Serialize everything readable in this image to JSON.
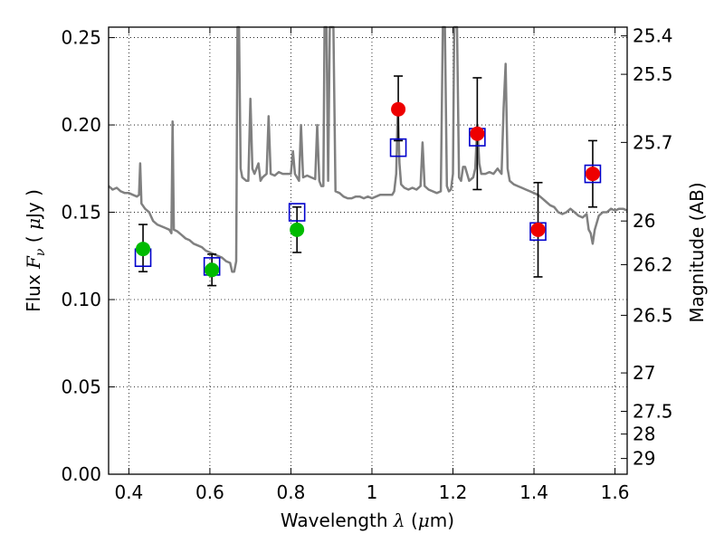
{
  "chart_data": {
    "type": "scatter",
    "xlabel": "Wavelength  λ (μm)",
    "ylabel": "Flux  F_ν  ( μJy )",
    "ylabel_right": "Magnitude (AB)",
    "xlim": [
      0.35,
      1.63
    ],
    "ylim": [
      0.0,
      0.256
    ],
    "grid": true,
    "x_ticks": [
      0.4,
      0.6,
      0.8,
      1.0,
      1.2,
      1.4,
      1.6
    ],
    "x_tick_labels": [
      "0.4",
      "0.6",
      "0.8",
      "1",
      "1.2",
      "1.4",
      "1.6"
    ],
    "y_ticks": [
      0.0,
      0.05,
      0.1,
      0.15,
      0.2,
      0.25
    ],
    "y_tick_labels": [
      "0.00",
      "0.05",
      "0.10",
      "0.15",
      "0.20",
      "0.25"
    ],
    "right_axis_ticks": [
      {
        "label": "25.4",
        "flux": 0.251
      },
      {
        "label": "25.5",
        "flux": 0.229
      },
      {
        "label": "25.7",
        "flux": 0.19
      },
      {
        "label": "26",
        "flux": 0.145
      },
      {
        "label": "26.2",
        "flux": 0.12
      },
      {
        "label": "26.5",
        "flux": 0.091
      },
      {
        "label": "27",
        "flux": 0.058
      },
      {
        "label": "27.5",
        "flux": 0.036
      },
      {
        "label": "28",
        "flux": 0.023
      },
      {
        "label": "29",
        "flux": 0.009
      }
    ],
    "series": [
      {
        "role": "model-spectrum",
        "color": "#808080",
        "points": [
          [
            0.35,
            0.165
          ],
          [
            0.36,
            0.163
          ],
          [
            0.37,
            0.164
          ],
          [
            0.38,
            0.162
          ],
          [
            0.39,
            0.161
          ],
          [
            0.4,
            0.161
          ],
          [
            0.41,
            0.16
          ],
          [
            0.42,
            0.159
          ],
          [
            0.425,
            0.16
          ],
          [
            0.428,
            0.178
          ],
          [
            0.431,
            0.155
          ],
          [
            0.44,
            0.152
          ],
          [
            0.45,
            0.15
          ],
          [
            0.46,
            0.145
          ],
          [
            0.47,
            0.143
          ],
          [
            0.48,
            0.142
          ],
          [
            0.49,
            0.141
          ],
          [
            0.5,
            0.14
          ],
          [
            0.505,
            0.138
          ],
          [
            0.508,
            0.202
          ],
          [
            0.511,
            0.14
          ],
          [
            0.52,
            0.139
          ],
          [
            0.53,
            0.137
          ],
          [
            0.54,
            0.135
          ],
          [
            0.55,
            0.134
          ],
          [
            0.56,
            0.132
          ],
          [
            0.57,
            0.131
          ],
          [
            0.58,
            0.13
          ],
          [
            0.59,
            0.128
          ],
          [
            0.6,
            0.127
          ],
          [
            0.61,
            0.126
          ],
          [
            0.62,
            0.125
          ],
          [
            0.63,
            0.124
          ],
          [
            0.64,
            0.122
          ],
          [
            0.65,
            0.121
          ],
          [
            0.655,
            0.116
          ],
          [
            0.66,
            0.116
          ],
          [
            0.665,
            0.122
          ],
          [
            0.668,
            0.256
          ],
          [
            0.672,
            0.256
          ],
          [
            0.676,
            0.175
          ],
          [
            0.68,
            0.17
          ],
          [
            0.69,
            0.168
          ],
          [
            0.695,
            0.168
          ],
          [
            0.7,
            0.215
          ],
          [
            0.705,
            0.175
          ],
          [
            0.71,
            0.172
          ],
          [
            0.72,
            0.178
          ],
          [
            0.725,
            0.168
          ],
          [
            0.73,
            0.17
          ],
          [
            0.74,
            0.172
          ],
          [
            0.745,
            0.205
          ],
          [
            0.75,
            0.172
          ],
          [
            0.76,
            0.171
          ],
          [
            0.77,
            0.173
          ],
          [
            0.78,
            0.172
          ],
          [
            0.79,
            0.172
          ],
          [
            0.8,
            0.172
          ],
          [
            0.805,
            0.185
          ],
          [
            0.81,
            0.172
          ],
          [
            0.82,
            0.168
          ],
          [
            0.825,
            0.2
          ],
          [
            0.83,
            0.17
          ],
          [
            0.84,
            0.171
          ],
          [
            0.85,
            0.17
          ],
          [
            0.86,
            0.169
          ],
          [
            0.865,
            0.2
          ],
          [
            0.87,
            0.168
          ],
          [
            0.875,
            0.165
          ],
          [
            0.88,
            0.165
          ],
          [
            0.883,
            0.256
          ],
          [
            0.888,
            0.256
          ],
          [
            0.892,
            0.168
          ],
          [
            0.896,
            0.256
          ],
          [
            0.9,
            0.256
          ],
          [
            0.905,
            0.256
          ],
          [
            0.91,
            0.162
          ],
          [
            0.92,
            0.161
          ],
          [
            0.93,
            0.159
          ],
          [
            0.94,
            0.158
          ],
          [
            0.95,
            0.158
          ],
          [
            0.96,
            0.159
          ],
          [
            0.97,
            0.159
          ],
          [
            0.98,
            0.158
          ],
          [
            0.99,
            0.159
          ],
          [
            1.0,
            0.158
          ],
          [
            1.01,
            0.159
          ],
          [
            1.02,
            0.16
          ],
          [
            1.03,
            0.16
          ],
          [
            1.04,
            0.16
          ],
          [
            1.05,
            0.16
          ],
          [
            1.055,
            0.162
          ],
          [
            1.06,
            0.172
          ],
          [
            1.064,
            0.21
          ],
          [
            1.068,
            0.178
          ],
          [
            1.072,
            0.166
          ],
          [
            1.08,
            0.164
          ],
          [
            1.09,
            0.163
          ],
          [
            1.1,
            0.164
          ],
          [
            1.11,
            0.163
          ],
          [
            1.12,
            0.165
          ],
          [
            1.125,
            0.19
          ],
          [
            1.13,
            0.165
          ],
          [
            1.14,
            0.163
          ],
          [
            1.15,
            0.162
          ],
          [
            1.16,
            0.161
          ],
          [
            1.17,
            0.162
          ],
          [
            1.175,
            0.256
          ],
          [
            1.18,
            0.256
          ],
          [
            1.185,
            0.165
          ],
          [
            1.19,
            0.162
          ],
          [
            1.195,
            0.163
          ],
          [
            1.2,
            0.172
          ],
          [
            1.203,
            0.256
          ],
          [
            1.21,
            0.256
          ],
          [
            1.215,
            0.17
          ],
          [
            1.22,
            0.168
          ],
          [
            1.225,
            0.176
          ],
          [
            1.23,
            0.176
          ],
          [
            1.24,
            0.168
          ],
          [
            1.25,
            0.17
          ],
          [
            1.255,
            0.175
          ],
          [
            1.26,
            0.2
          ],
          [
            1.265,
            0.178
          ],
          [
            1.27,
            0.172
          ],
          [
            1.28,
            0.172
          ],
          [
            1.29,
            0.173
          ],
          [
            1.3,
            0.172
          ],
          [
            1.31,
            0.175
          ],
          [
            1.32,
            0.172
          ],
          [
            1.325,
            0.21
          ],
          [
            1.33,
            0.235
          ],
          [
            1.335,
            0.175
          ],
          [
            1.34,
            0.168
          ],
          [
            1.35,
            0.166
          ],
          [
            1.36,
            0.165
          ],
          [
            1.37,
            0.164
          ],
          [
            1.38,
            0.163
          ],
          [
            1.39,
            0.162
          ],
          [
            1.4,
            0.161
          ],
          [
            1.41,
            0.16
          ],
          [
            1.42,
            0.158
          ],
          [
            1.43,
            0.156
          ],
          [
            1.44,
            0.154
          ],
          [
            1.45,
            0.153
          ],
          [
            1.46,
            0.15
          ],
          [
            1.47,
            0.149
          ],
          [
            1.48,
            0.15
          ],
          [
            1.49,
            0.152
          ],
          [
            1.5,
            0.15
          ],
          [
            1.51,
            0.148
          ],
          [
            1.52,
            0.147
          ],
          [
            1.53,
            0.149
          ],
          [
            1.535,
            0.14
          ],
          [
            1.54,
            0.138
          ],
          [
            1.545,
            0.132
          ],
          [
            1.55,
            0.14
          ],
          [
            1.56,
            0.148
          ],
          [
            1.57,
            0.15
          ],
          [
            1.58,
            0.15
          ],
          [
            1.59,
            0.152
          ],
          [
            1.6,
            0.151
          ],
          [
            1.61,
            0.152
          ],
          [
            1.62,
            0.152
          ],
          [
            1.63,
            0.151
          ]
        ]
      },
      {
        "role": "model-photometry",
        "marker": "open-square",
        "color": "#0000cc",
        "x": [
          0.435,
          0.605,
          0.815,
          1.065,
          1.26,
          1.41,
          1.545
        ],
        "y": [
          0.124,
          0.119,
          0.15,
          0.187,
          0.193,
          0.139,
          0.172
        ]
      },
      {
        "role": "observed-optical",
        "marker": "filled-circle",
        "color": "#00bb00",
        "x": [
          0.435,
          0.605,
          0.815
        ],
        "y": [
          0.129,
          0.117,
          0.14
        ],
        "yerr_low": [
          0.013,
          0.009,
          0.013
        ],
        "yerr_high": [
          0.014,
          0.009,
          0.013
        ]
      },
      {
        "role": "observed-nir",
        "marker": "filled-circle",
        "color": "#ee0000",
        "x": [
          1.065,
          1.26,
          1.41,
          1.545
        ],
        "y": [
          0.209,
          0.195,
          0.14,
          0.172
        ],
        "yerr_low": [
          0.018,
          0.032,
          0.027,
          0.019
        ],
        "yerr_high": [
          0.019,
          0.032,
          0.027,
          0.019
        ]
      }
    ]
  }
}
